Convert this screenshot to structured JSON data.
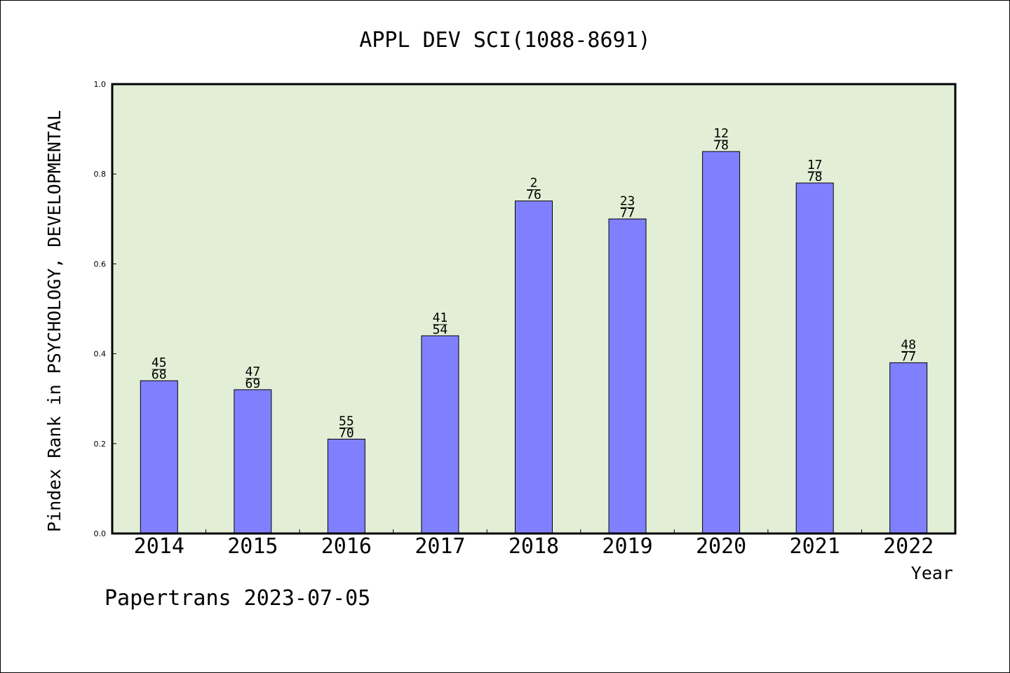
{
  "footer": {
    "text": "Papertrans 2023-07-05"
  },
  "colors": {
    "plot_bg": "#e2efd6",
    "bar": "#8080ff",
    "axis": "#000000"
  },
  "chart_data": {
    "type": "bar",
    "title": "APPL DEV SCI(1088-8691)",
    "xlabel": "Year",
    "ylabel": "Pindex Rank in PSYCHOLOGY, DEVELOPMENTAL",
    "categories": [
      "2014",
      "2015",
      "2016",
      "2017",
      "2018",
      "2019",
      "2020",
      "2021",
      "2022"
    ],
    "values": [
      0.34,
      0.32,
      0.21,
      0.44,
      0.74,
      0.7,
      0.85,
      0.78,
      0.38
    ],
    "rank": [
      "45",
      "47",
      "55",
      "41",
      "2",
      "23",
      "12",
      "17",
      "48"
    ],
    "total": [
      "68",
      "69",
      "70",
      "54",
      "76",
      "77",
      "78",
      "78",
      "77"
    ],
    "ylim": [
      0,
      1.0
    ],
    "yticks": [
      "0.0",
      "0.2",
      "0.4",
      "0.6",
      "0.8",
      "1.0"
    ],
    "grid": false,
    "legend": "none"
  }
}
